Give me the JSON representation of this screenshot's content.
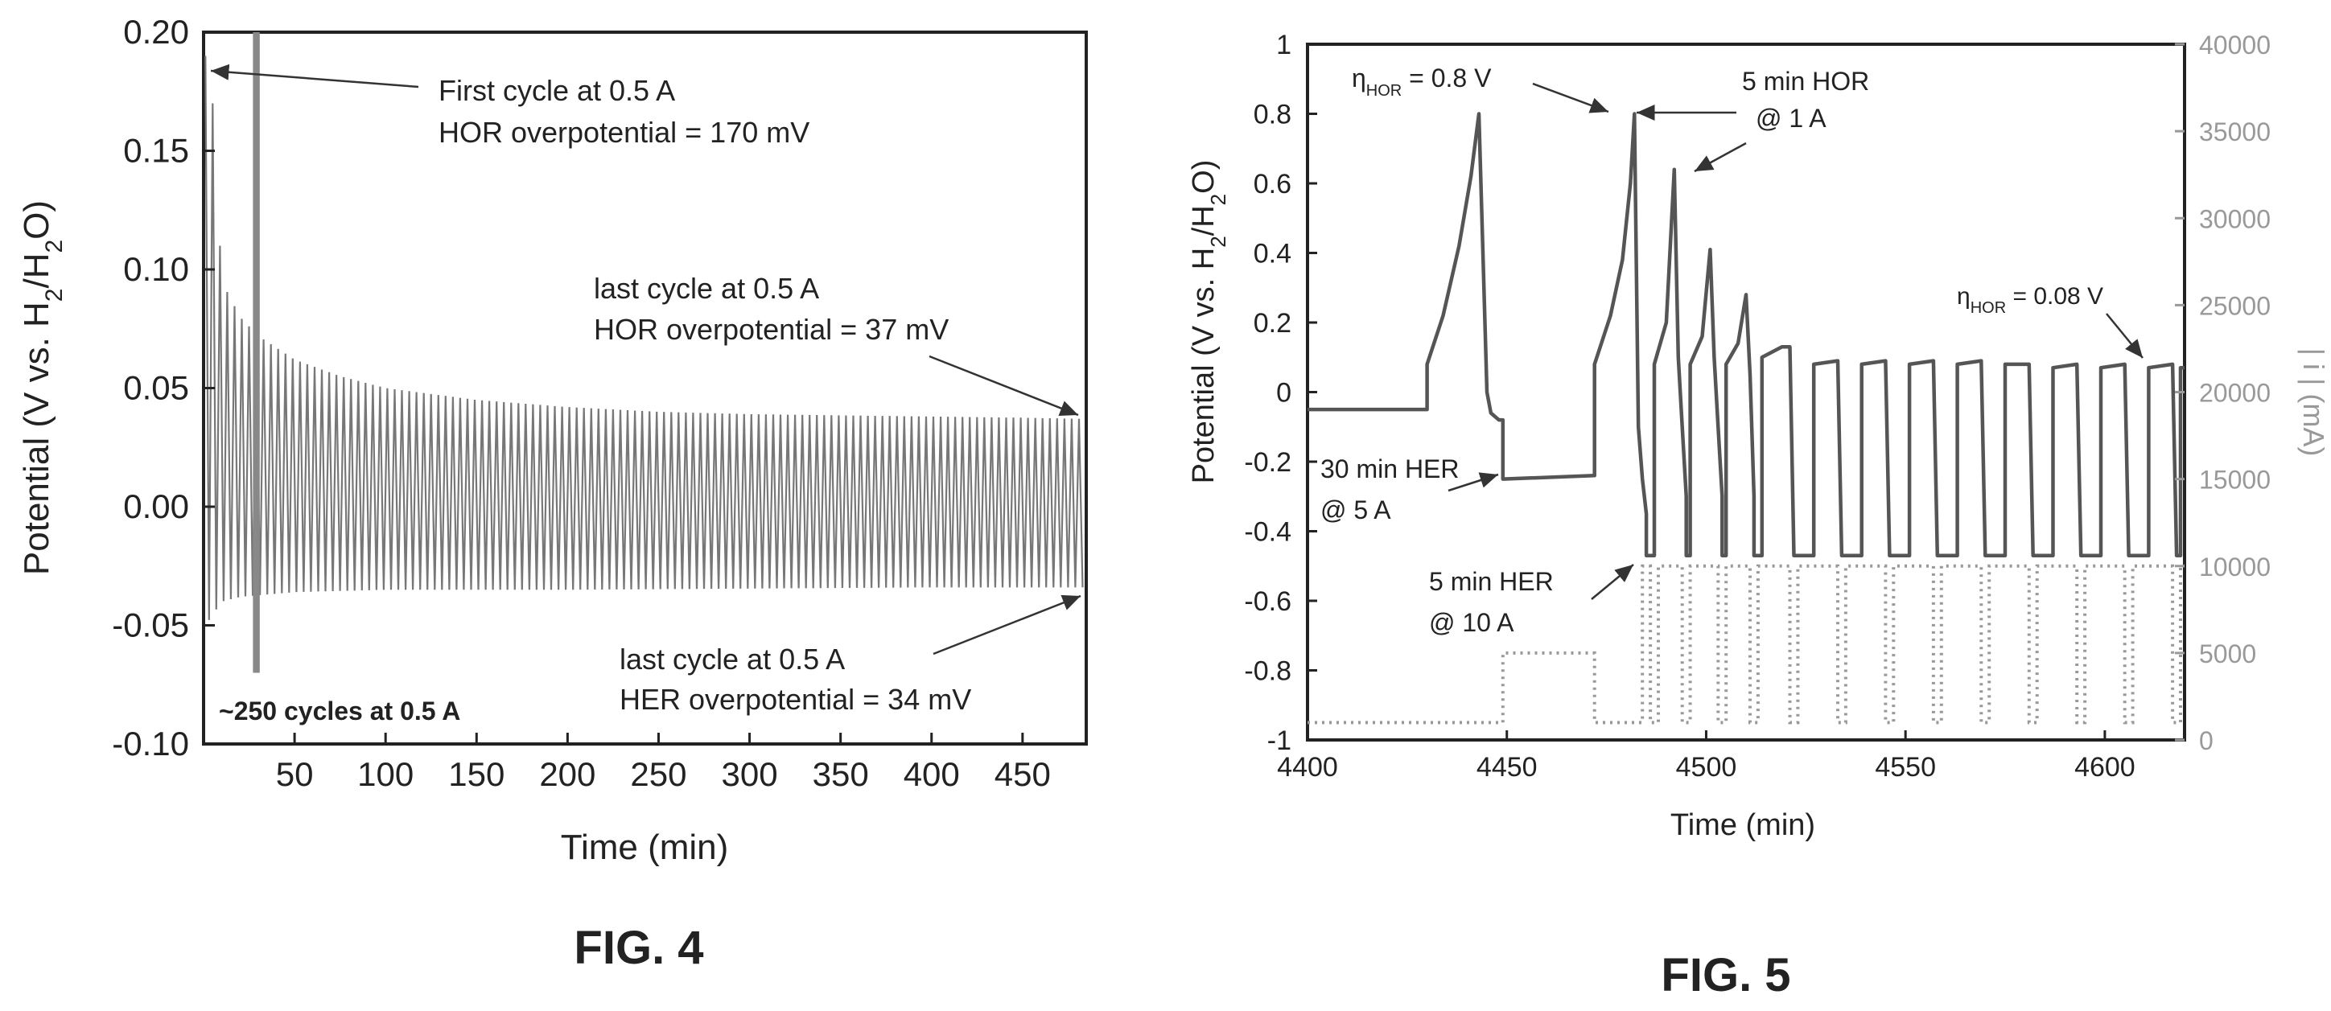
{
  "chart_data": [
    {
      "type": "line",
      "figure_label": "FIG. 4",
      "xlabel": "Time (min)",
      "ylabel": "Potential (V vs. H2/H2O)",
      "xlim": [
        0,
        485
      ],
      "ylim": [
        -0.1,
        0.2
      ],
      "xticks": [
        50,
        100,
        150,
        200,
        250,
        300,
        350,
        400,
        450
      ],
      "xtick_labels": [
        "50",
        "100",
        "150",
        "200",
        "250",
        "300",
        "350",
        "400",
        "450"
      ],
      "yticks": [
        -0.1,
        -0.05,
        0.0,
        0.05,
        0.1,
        0.15,
        0.2
      ],
      "ytick_labels": [
        "-0.10",
        "-0.05",
        "0.00",
        "0.05",
        "0.10",
        "0.15",
        "0.20"
      ],
      "grid": false,
      "series": [
        {
          "envelope_upper": [
            [
              1,
              0.19
            ],
            [
              5,
              0.17
            ],
            [
              10,
              0.095
            ],
            [
              20,
              0.08
            ],
            [
              30,
              0.072
            ],
            [
              50,
              0.062
            ],
            [
              75,
              0.055
            ],
            [
              100,
              0.05
            ],
            [
              150,
              0.045
            ],
            [
              200,
              0.042
            ],
            [
              250,
              0.04
            ],
            [
              300,
              0.039
            ],
            [
              350,
              0.0385
            ],
            [
              400,
              0.038
            ],
            [
              450,
              0.0375
            ],
            [
              484,
              0.037
            ]
          ],
          "envelope_lower": [
            [
              1,
              -0.05
            ],
            [
              10,
              -0.04
            ],
            [
              20,
              -0.038
            ],
            [
              50,
              -0.036
            ],
            [
              100,
              -0.035
            ],
            [
              200,
              -0.035
            ],
            [
              300,
              -0.0345
            ],
            [
              400,
              -0.034
            ],
            [
              484,
              -0.034
            ]
          ],
          "spike": {
            "x": 29,
            "ymin": -0.07,
            "ymax": 0.2
          }
        }
      ],
      "annotations": [
        {
          "lines": [
            "First cycle at 0.5 A",
            "HOR overpotential = 170 mV"
          ],
          "target": [
            3,
            0.19
          ]
        },
        {
          "lines": [
            "last cycle at 0.5 A",
            "HOR overpotential = 37 mV"
          ],
          "target": [
            484,
            0.037
          ]
        },
        {
          "lines": [
            "last cycle at 0.5 A",
            "HER overpotential = 34 mV"
          ],
          "target": [
            484,
            -0.034
          ]
        },
        {
          "lines": [
            "~250 cycles at 0.5 A"
          ],
          "bold": true
        }
      ]
    },
    {
      "type": "line",
      "figure_label": "FIG. 5",
      "xlabel": "Time (min)",
      "ylabel": "Potential (V vs. H2/H2O)",
      "y2label": "| i | (mA)",
      "xlim": [
        4400,
        4620
      ],
      "ylim": [
        -1,
        1
      ],
      "y2lim": [
        0,
        40000
      ],
      "xticks": [
        4400,
        4450,
        4500,
        4550,
        4600
      ],
      "xtick_labels": [
        "4400",
        "4450",
        "4500",
        "4550",
        "4600"
      ],
      "yticks": [
        -1,
        -0.8,
        -0.6,
        -0.4,
        -0.2,
        0,
        0.2,
        0.4,
        0.6,
        0.8,
        1
      ],
      "ytick_labels": [
        "-1",
        "-0.8",
        "-0.6",
        "-0.4",
        "-0.2",
        "0",
        "0.2",
        "0.4",
        "0.6",
        "0.8",
        "1"
      ],
      "y2ticks": [
        0,
        5000,
        10000,
        15000,
        20000,
        25000,
        30000,
        35000,
        40000
      ],
      "y2tick_labels": [
        "0",
        "5000",
        "10000",
        "15000",
        "20000",
        "25000",
        "30000",
        "35000",
        "40000"
      ],
      "grid": false,
      "series": [
        {
          "axis": "left",
          "style": "solid",
          "points": [
            [
              4400,
              -0.05
            ],
            [
              4430,
              -0.05
            ],
            [
              4430,
              0.08
            ],
            [
              4434,
              0.22
            ],
            [
              4438,
              0.42
            ],
            [
              4441,
              0.62
            ],
            [
              4443,
              0.8
            ],
            [
              4444,
              0.4
            ],
            [
              4445,
              0.0
            ],
            [
              4446,
              -0.06
            ],
            [
              4448,
              -0.08
            ],
            [
              4449,
              -0.08
            ],
            [
              4449,
              -0.25
            ],
            [
              4472,
              -0.24
            ],
            [
              4472,
              0.08
            ],
            [
              4476,
              0.22
            ],
            [
              4479,
              0.38
            ],
            [
              4481,
              0.6
            ],
            [
              4482,
              0.8
            ],
            [
              4483,
              -0.1
            ],
            [
              4484,
              -0.25
            ],
            [
              4485,
              -0.35
            ],
            [
              4485,
              -0.47
            ],
            [
              4487,
              -0.47
            ],
            [
              4487,
              0.08
            ],
            [
              4490,
              0.2
            ],
            [
              4492,
              0.64
            ],
            [
              4493,
              0.1
            ],
            [
              4494,
              -0.1
            ],
            [
              4495,
              -0.3
            ],
            [
              4495,
              -0.47
            ],
            [
              4496,
              -0.47
            ],
            [
              4496,
              0.08
            ],
            [
              4499,
              0.16
            ],
            [
              4501,
              0.41
            ],
            [
              4502,
              0.1
            ],
            [
              4503,
              -0.1
            ],
            [
              4504,
              -0.3
            ],
            [
              4504,
              -0.47
            ],
            [
              4505,
              -0.47
            ],
            [
              4505,
              0.08
            ],
            [
              4508,
              0.14
            ],
            [
              4510,
              0.28
            ],
            [
              4511,
              0.05
            ],
            [
              4512,
              -0.3
            ],
            [
              4512,
              -0.47
            ],
            [
              4514,
              -0.47
            ],
            [
              4514,
              0.1
            ],
            [
              4519,
              0.13
            ],
            [
              4521,
              0.13
            ],
            [
              4522,
              -0.47
            ],
            [
              4527,
              -0.47
            ],
            [
              4527,
              0.08
            ],
            [
              4533,
              0.09
            ],
            [
              4534,
              -0.47
            ],
            [
              4539,
              -0.47
            ],
            [
              4539,
              0.08
            ],
            [
              4545,
              0.09
            ],
            [
              4546,
              -0.47
            ],
            [
              4551,
              -0.47
            ],
            [
              4551,
              0.08
            ],
            [
              4557,
              0.09
            ],
            [
              4558,
              -0.47
            ],
            [
              4563,
              -0.47
            ],
            [
              4563,
              0.08
            ],
            [
              4569,
              0.09
            ],
            [
              4570,
              -0.47
            ],
            [
              4575,
              -0.47
            ],
            [
              4575,
              0.08
            ],
            [
              4581,
              0.08
            ],
            [
              4582,
              -0.47
            ],
            [
              4587,
              -0.47
            ],
            [
              4587,
              0.07
            ],
            [
              4593,
              0.08
            ],
            [
              4594,
              -0.47
            ],
            [
              4599,
              -0.47
            ],
            [
              4599,
              0.07
            ],
            [
              4605,
              0.08
            ],
            [
              4606,
              -0.47
            ],
            [
              4611,
              -0.47
            ],
            [
              4611,
              0.07
            ],
            [
              4617,
              0.08
            ],
            [
              4618,
              -0.47
            ],
            [
              4619,
              -0.47
            ],
            [
              4619,
              0.07
            ],
            [
              4620,
              0.07
            ]
          ]
        },
        {
          "axis": "right",
          "style": "dotted",
          "points": [
            [
              4400,
              1000
            ],
            [
              4449,
              1000
            ],
            [
              4449,
              5000
            ],
            [
              4472,
              5000
            ],
            [
              4472,
              1000
            ],
            [
              4484,
              1000
            ],
            [
              4484,
              10000
            ],
            [
              4486,
              10000
            ],
            [
              4486,
              1000
            ],
            [
              4488,
              1000
            ],
            [
              4488,
              10000
            ],
            [
              4494,
              10000
            ],
            [
              4494,
              1000
            ],
            [
              4496,
              1000
            ],
            [
              4496,
              10000
            ],
            [
              4503,
              10000
            ],
            [
              4503,
              1000
            ],
            [
              4505,
              1000
            ],
            [
              4505,
              10000
            ],
            [
              4511,
              10000
            ],
            [
              4511,
              1000
            ],
            [
              4513,
              1000
            ],
            [
              4513,
              10000
            ],
            [
              4521,
              10000
            ],
            [
              4521,
              1000
            ],
            [
              4523,
              1000
            ],
            [
              4523,
              10000
            ],
            [
              4533,
              10000
            ],
            [
              4533,
              1000
            ],
            [
              4535,
              1000
            ],
            [
              4535,
              10000
            ],
            [
              4545,
              10000
            ],
            [
              4545,
              1000
            ],
            [
              4547,
              1000
            ],
            [
              4547,
              10000
            ],
            [
              4557,
              10000
            ],
            [
              4557,
              1000
            ],
            [
              4559,
              1000
            ],
            [
              4559,
              10000
            ],
            [
              4569,
              10000
            ],
            [
              4569,
              1000
            ],
            [
              4571,
              1000
            ],
            [
              4571,
              10000
            ],
            [
              4581,
              10000
            ],
            [
              4581,
              1000
            ],
            [
              4583,
              1000
            ],
            [
              4583,
              10000
            ],
            [
              4593,
              10000
            ],
            [
              4593,
              1000
            ],
            [
              4595,
              1000
            ],
            [
              4595,
              10000
            ],
            [
              4605,
              10000
            ],
            [
              4605,
              1000
            ],
            [
              4607,
              1000
            ],
            [
              4607,
              10000
            ],
            [
              4617,
              10000
            ],
            [
              4617,
              1000
            ],
            [
              4619,
              1000
            ],
            [
              4619,
              10000
            ],
            [
              4620,
              10000
            ]
          ]
        }
      ],
      "annotations": [
        {
          "lines": [
            "ηHOR = 0.8 V"
          ],
          "target": [
            4482,
            0.8
          ]
        },
        {
          "lines": [
            "5 min HOR",
            "@ 1 A"
          ],
          "target": [
            4484,
            0.8
          ]
        },
        {
          "lines": [
            "ηHOR = 0.08 V"
          ],
          "target": [
            4617,
            0.08
          ]
        },
        {
          "lines": [
            "30 min HER",
            "@ 5 A"
          ],
          "target": [
            4473,
            -0.24
          ]
        },
        {
          "lines": [
            "5 min HER",
            "@ 10 A"
          ],
          "target": [
            4485,
            -0.47
          ]
        }
      ]
    }
  ]
}
